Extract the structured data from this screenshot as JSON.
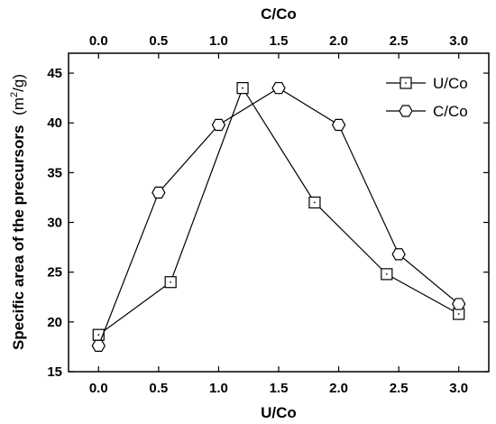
{
  "chart_data": {
    "type": "line",
    "xlabel": "U/Co",
    "x2label": "C/Co",
    "ylabel_main": "Specific area of the precursors",
    "ylabel_unit_open": "(m",
    "ylabel_unit_sup": "2",
    "ylabel_unit_close": "/g)",
    "xlim": [
      -0.25,
      3.25
    ],
    "ylim": [
      15,
      47
    ],
    "xticks": [
      "0.0",
      "0.5",
      "1.0",
      "1.5",
      "2.0",
      "2.5",
      "3.0"
    ],
    "x2ticks": [
      "0.0",
      "0.5",
      "1.0",
      "1.5",
      "2.0",
      "2.5",
      "3.0"
    ],
    "yticks": [
      "15",
      "20",
      "25",
      "30",
      "35",
      "40",
      "45"
    ],
    "legend_position": "top-right",
    "series": [
      {
        "name": "U/Co",
        "marker": "square",
        "axis": "bottom",
        "x": [
          0.0,
          0.6,
          1.2,
          1.8,
          2.4,
          3.0
        ],
        "y": [
          18.7,
          24.0,
          43.5,
          32.0,
          24.8,
          20.8
        ]
      },
      {
        "name": "C/Co",
        "marker": "hexagon",
        "axis": "top",
        "x": [
          0.0,
          0.5,
          1.0,
          1.5,
          2.0,
          2.5,
          3.0
        ],
        "y": [
          17.6,
          33.0,
          39.8,
          43.5,
          39.8,
          26.8,
          21.8
        ]
      }
    ]
  }
}
